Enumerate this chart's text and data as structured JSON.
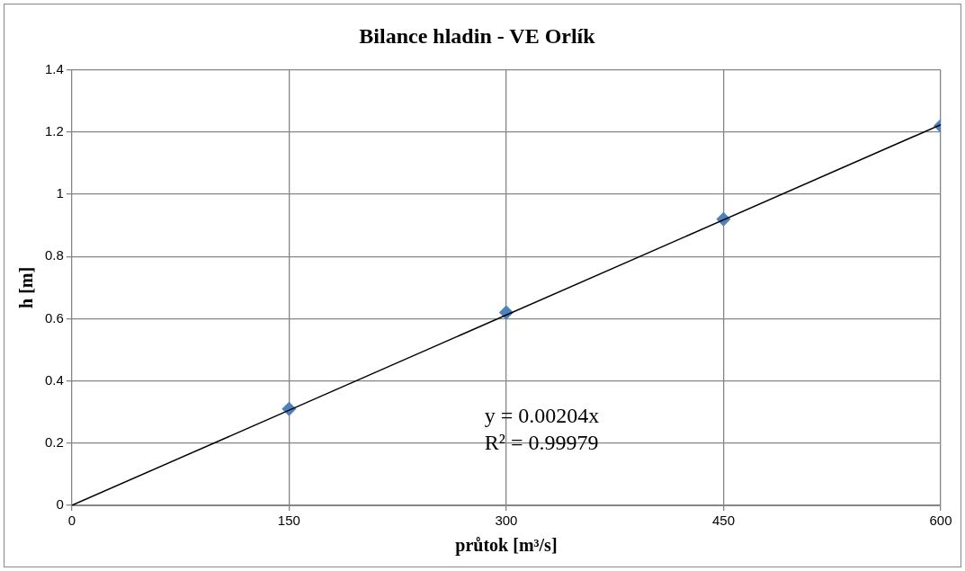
{
  "chart_data": {
    "type": "scatter",
    "title": "Bilance hladin - VE Orlík",
    "xlabel": "průtok [m³/s]",
    "ylabel": "h [m]",
    "xlim": [
      0,
      600
    ],
    "xticks": [
      0,
      150,
      300,
      450,
      600
    ],
    "ylim": [
      0,
      1.4
    ],
    "yticks": [
      0,
      0.2,
      0.4,
      0.6,
      0.8,
      1,
      1.2,
      1.4
    ],
    "grid": true,
    "legend": false,
    "marker": "diamond",
    "series": [
      {
        "type": "scatter",
        "color": "#4f81bd",
        "x": [
          150,
          300,
          450,
          600
        ],
        "values": [
          0.31,
          0.62,
          0.92,
          1.22
        ]
      },
      {
        "type": "line",
        "color": "#000000",
        "x": [
          0,
          600
        ],
        "values": [
          0,
          1.224
        ],
        "marker": "none",
        "line_style": "solid"
      }
    ],
    "annotations": [
      "y = 0.00204x",
      "R² = 0.99979"
    ]
  }
}
